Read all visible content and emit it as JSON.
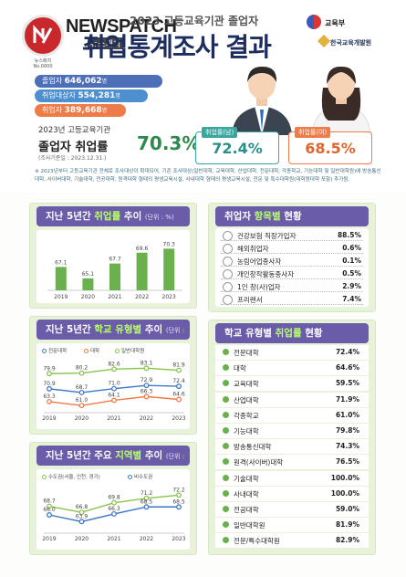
{
  "logo": {
    "brand": "NEWSPATCH",
    "brand_sub": "뉴스패치",
    "seal_text": "뉴스패치 No.0000"
  },
  "header": {
    "subtitle": "2023 고등교육기관 졸업자",
    "title": "취업통계조사 결과",
    "org1": "교육부",
    "org2": "한국교육개발원"
  },
  "stats": {
    "graduates": {
      "label": "졸업자",
      "value": "646,062",
      "unit": "명"
    },
    "eligible": {
      "label": "취업대상자",
      "value": "554,281",
      "unit": "명"
    },
    "employed": {
      "label": "취업자",
      "value": "389,668",
      "unit": "명"
    }
  },
  "rate": {
    "label": "2023년 고등교육기관",
    "title": "졸업자 취업률",
    "value": "70.3%",
    "note": "(조사기준일 : 2023.12.31.)"
  },
  "gender": {
    "male": {
      "label": "취업률(남)",
      "value": "72.4%"
    },
    "female": {
      "label": "취업률(여)",
      "value": "68.5%"
    }
  },
  "footnote": "※ 2023년부터 고등교육기관 전체로 조사대상이 확대되어, 기존 조사대상(일반대학, 교육대학, 산업대학, 전문대학, 각종학교, 기능대학 및 일반대학원)에 방송통신대학, 사이버대학, 기술대학, 전공대학, 원격대학 형태의 평생교육시설, 사내대학 형태의 평생교육시설, 전문 및 특수대학원(대학원대학 포함) 추가됨.",
  "panels": {
    "trend": {
      "title_pre": "지난 5년간 ",
      "title_hl": "취업률",
      "title_post": " 추이",
      "unit": "(단위 : %)"
    },
    "school_trend": {
      "title_pre": "지난 5년간 ",
      "title_hl": "학교 유형별",
      "title_post": " 추이",
      "unit": "(단위 : %)"
    },
    "region_trend": {
      "title_pre": "지난 5년간 주요 ",
      "title_hl": "지역별",
      "title_post": " 추이",
      "unit": "(단위 : %)"
    },
    "items": {
      "title_pre": "취업자 ",
      "title_hl": "항목별",
      "title_post": " 현황"
    },
    "school_types": {
      "title_pre": "학교 유형별 ",
      "title_hl": "취업률",
      "title_post": " 현황"
    }
  },
  "chart_data": [
    {
      "type": "bar",
      "title": "지난 5년간 취업률 추이",
      "categories": [
        "2019",
        "2020",
        "2021",
        "2022",
        "2023"
      ],
      "values": [
        67.1,
        65.1,
        67.7,
        69.6,
        70.3
      ],
      "ylim": [
        63,
        71
      ],
      "color": "#6ab04c"
    },
    {
      "type": "line",
      "title": "지난 5년간 학교 유형별 추이",
      "x": [
        "2019",
        "2020",
        "2021",
        "2022",
        "2023"
      ],
      "ylim": [
        60,
        86
      ],
      "series": [
        {
          "name": "전문대학",
          "values": [
            70.9,
            68.7,
            71.0,
            72.9,
            72.4
          ],
          "color": "#3d79c8"
        },
        {
          "name": "대학",
          "values": [
            63.3,
            61.0,
            64.1,
            66.3,
            64.6
          ],
          "color": "#ee7b48"
        },
        {
          "name": "일반대학원",
          "values": [
            79.9,
            80.2,
            82.6,
            83.1,
            81.9
          ],
          "color": "#8ac44d"
        }
      ]
    },
    {
      "type": "line",
      "title": "지난 5년간 주요 지역별 추이",
      "x": [
        "2019",
        "2020",
        "2021",
        "2022",
        "2023"
      ],
      "ylim": [
        62,
        74
      ],
      "series": [
        {
          "name": "수도권(서울, 인천, 경기)",
          "values": [
            68.7,
            66.8,
            69.8,
            71.2,
            72.2
          ],
          "color": "#8ac44d"
        },
        {
          "name": "비수도권",
          "values": [
            66.0,
            63.9,
            66.3,
            68.5,
            68.5
          ],
          "color": "#3d79c8"
        }
      ]
    }
  ],
  "items": [
    {
      "label": "건강보험 직장가입자",
      "value": "88.5%",
      "icon": "building-icon"
    },
    {
      "label": "해외취업자",
      "value": "0.6%",
      "icon": "globe-icon"
    },
    {
      "label": "농림어업종사자",
      "value": "0.1%",
      "icon": "farm-icon"
    },
    {
      "label": "개인창작활동종사자",
      "value": "0.5%",
      "icon": "palette-icon"
    },
    {
      "label": "1인 창(사)업자",
      "value": "2.9%",
      "icon": "person-icon"
    },
    {
      "label": "프리랜서",
      "value": "7.4%",
      "icon": "laptop-icon"
    }
  ],
  "school_types": [
    {
      "label": "전문대학",
      "value": "72.4%"
    },
    {
      "label": "대학",
      "value": "64.6%"
    },
    {
      "label": "교육대학",
      "value": "59.5%"
    },
    {
      "label": "산업대학",
      "value": "71.9%"
    },
    {
      "label": "각종학교",
      "value": "61.0%"
    },
    {
      "label": "기능대학",
      "value": "79.8%"
    },
    {
      "label": "방송통신대학",
      "value": "74.3%"
    },
    {
      "label": "원격(사이버)대학",
      "value": "76.5%"
    },
    {
      "label": "기술대학",
      "value": "100.0%"
    },
    {
      "label": "사내대학",
      "value": "100.0%"
    },
    {
      "label": "전공대학",
      "value": "59.0%"
    },
    {
      "label": "일반대학원",
      "value": "81.9%"
    },
    {
      "label": "전문/특수대학원",
      "value": "82.9%"
    }
  ]
}
